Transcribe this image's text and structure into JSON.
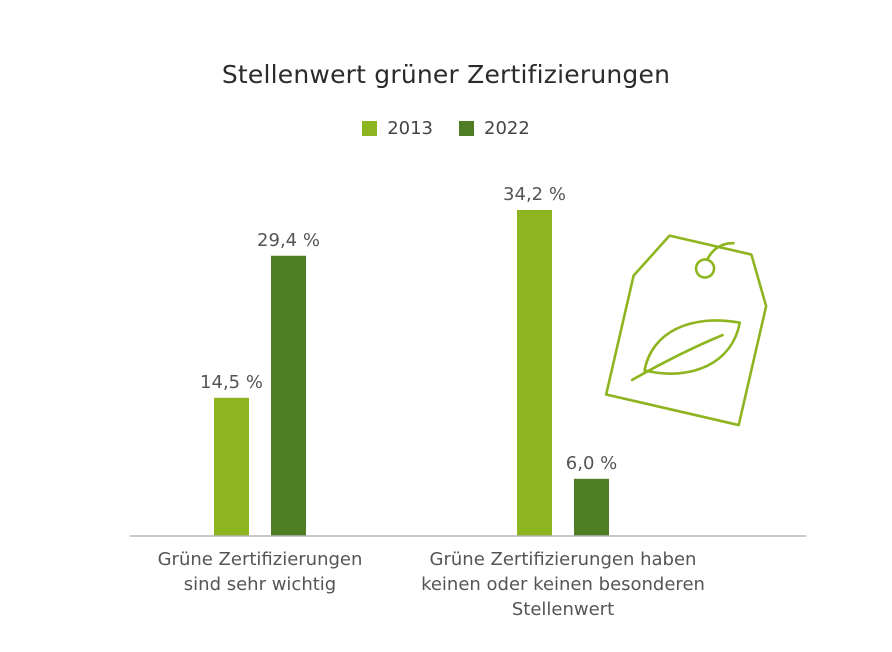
{
  "chart_data": {
    "type": "bar",
    "title": "Stellenwert grüner Zertifizierungen",
    "categories": [
      [
        "Grüne Zertifizierungen",
        "sind sehr wichtig"
      ],
      [
        "Grüne Zertifizierungen haben",
        "keinen oder keinen besonderen",
        "Stellenwert"
      ]
    ],
    "series": [
      {
        "name": "2013",
        "color": "#8db51f",
        "values": [
          14.5,
          34.2
        ],
        "labels": [
          "14,5 %",
          "34,2 %"
        ]
      },
      {
        "name": "2022",
        "color": "#4f7d24",
        "values": [
          29.4,
          6.0
        ],
        "labels": [
          "29,4 %",
          "6,0 %"
        ]
      }
    ],
    "ylim": [
      0,
      40
    ],
    "xlabel": "",
    "ylabel": "",
    "grid": false,
    "legend_position": "top-center"
  },
  "decoration": {
    "icon": "leaf-price-tag-icon",
    "color": "#8db51f"
  }
}
